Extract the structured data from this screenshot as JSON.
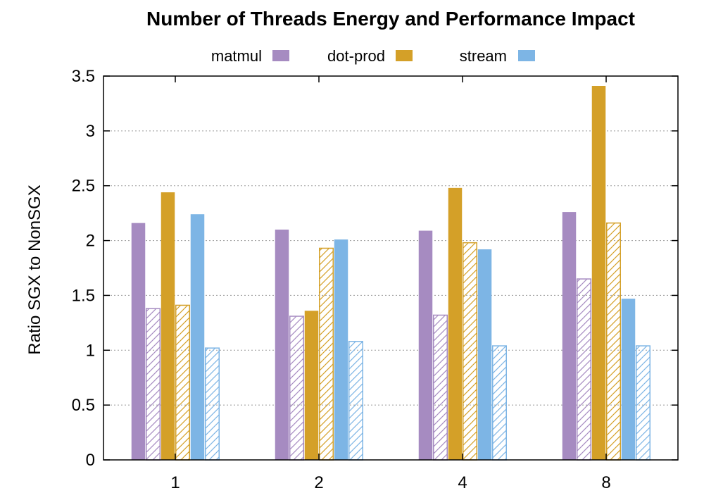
{
  "chart_data": {
    "type": "bar",
    "title": "Number of Threads Energy and Performance Impact",
    "xlabel": "",
    "ylabel": "Ratio SGX to NonSGX",
    "categories": [
      "1",
      "2",
      "4",
      "8"
    ],
    "ylim": [
      0,
      3.5
    ],
    "yticks": [
      "0",
      "0.5",
      "1",
      "1.5",
      "2",
      "2.5",
      "3",
      "3.5"
    ],
    "grid": true,
    "legend_position": "top-center",
    "series": [
      {
        "name": "matmul",
        "color": "#a68bc1",
        "fill": "solid",
        "values": [
          2.16,
          2.1,
          2.09,
          2.26
        ]
      },
      {
        "name": "",
        "color": "#a68bc1",
        "fill": "hatched",
        "values": [
          1.38,
          1.31,
          1.32,
          1.65
        ]
      },
      {
        "name": "dot-prod",
        "color": "#d4a028",
        "fill": "solid",
        "values": [
          2.44,
          1.36,
          2.48,
          3.41
        ]
      },
      {
        "name": "",
        "color": "#d4a028",
        "fill": "hatched",
        "values": [
          1.41,
          1.93,
          1.98,
          2.16
        ]
      },
      {
        "name": "stream",
        "color": "#7db5e5",
        "fill": "solid",
        "values": [
          2.24,
          2.01,
          1.92,
          1.47
        ]
      },
      {
        "name": "",
        "color": "#7db5e5",
        "fill": "hatched",
        "values": [
          1.02,
          1.08,
          1.04,
          1.04
        ]
      }
    ]
  }
}
